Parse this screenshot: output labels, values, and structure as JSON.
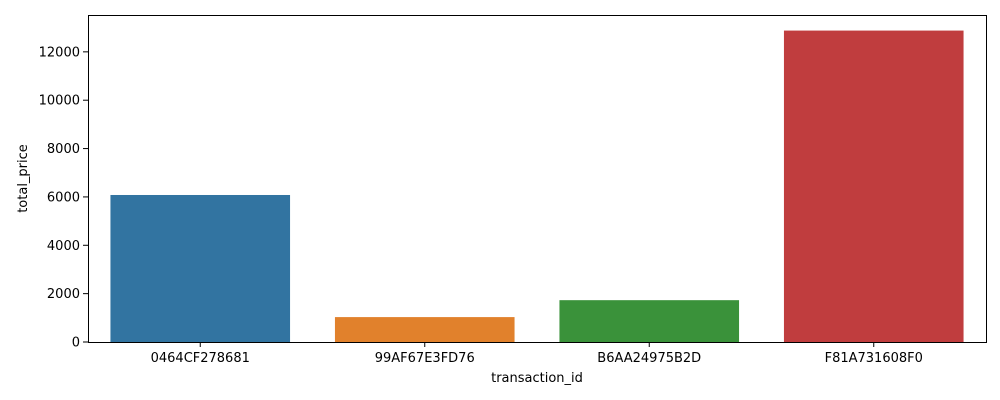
{
  "chart_data": {
    "type": "bar",
    "categories": [
      "0464CF278681",
      "99AF67E3FD76",
      "B6AA24975B2D",
      "F81A731608F0"
    ],
    "values": [
      6080,
      1030,
      1730,
      12880
    ],
    "colors": [
      "#3274a1",
      "#e1812c",
      "#3a923a",
      "#c03d3e"
    ],
    "xlabel": "transaction_id",
    "ylabel": "total_price",
    "ylim": [
      0,
      13524
    ],
    "yticks": [
      0,
      2000,
      4000,
      6000,
      8000,
      10000,
      12000
    ],
    "grid": false,
    "legend": "none"
  }
}
